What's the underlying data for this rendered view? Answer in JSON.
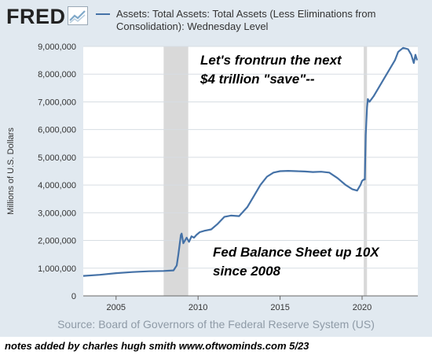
{
  "brand": {
    "name": "FRED",
    "logo_icon": "fred-chart-icon"
  },
  "legend": {
    "label": "Assets: Total Assets: Total Assets (Less Eliminations from Consolidation): Wednesday Level",
    "color": "#4572a7"
  },
  "source": "Source: Board of Governors of the Federal Reserve System (US)",
  "footnote": "notes added by charles hugh smith  www.oftwominds.com  5/23",
  "annotations": {
    "top_line1": "Let's frontrun the next",
    "top_line2": "$4 trillion \"save\"--",
    "mid_line1": "Fed Balance Sheet up 10X",
    "mid_line2": "since 2008"
  },
  "chart_data": {
    "type": "line",
    "title": "",
    "ylabel": "Millions of U.S. Dollars",
    "xlabel": "",
    "xlim": [
      2003.0,
      2023.4
    ],
    "ylim": [
      0,
      9000000
    ],
    "xticks": [
      2005,
      2010,
      2015,
      2020
    ],
    "yticks": [
      0,
      1000000,
      2000000,
      3000000,
      4000000,
      5000000,
      6000000,
      7000000,
      8000000,
      9000000
    ],
    "ytick_labels": [
      "0",
      "1,000,000",
      "2,000,000",
      "3,000,000",
      "4,000,000",
      "5,000,000",
      "6,000,000",
      "7,000,000",
      "8,000,000",
      "9,000,000"
    ],
    "grid": true,
    "recessions": [
      [
        2007.9,
        2009.4
      ],
      [
        2020.1,
        2020.3
      ]
    ],
    "line_color": "#4572a7",
    "recession_color": "#d9d9d9",
    "series": [
      {
        "x": [
          2003.0,
          2004.0,
          2005.0,
          2006.0,
          2007.0,
          2007.9,
          2008.5,
          2008.7,
          2008.8,
          2008.95,
          2009.0,
          2009.1,
          2009.2,
          2009.3,
          2009.45,
          2009.6,
          2009.75,
          2009.9,
          2010.1,
          2010.4,
          2010.8,
          2011.2,
          2011.6,
          2012.0,
          2012.5,
          2013.0,
          2013.4,
          2013.8,
          2014.2,
          2014.6,
          2015.0,
          2015.5,
          2016.0,
          2016.5,
          2017.0,
          2017.5,
          2018.0,
          2018.5,
          2019.0,
          2019.4,
          2019.7,
          2019.9,
          2020.0,
          2020.1,
          2020.17,
          2020.22,
          2020.3,
          2020.35,
          2020.45,
          2020.7,
          2021.0,
          2021.3,
          2021.7,
          2022.0,
          2022.2,
          2022.5,
          2022.8,
          2023.0,
          2023.15,
          2023.25,
          2023.35
        ],
        "y": [
          720000,
          760000,
          820000,
          860000,
          890000,
          900000,
          920000,
          1100000,
          1500000,
          2200000,
          2250000,
          1900000,
          2000000,
          2100000,
          1950000,
          2150000,
          2100000,
          2200000,
          2300000,
          2350000,
          2400000,
          2600000,
          2850000,
          2900000,
          2880000,
          3200000,
          3600000,
          4000000,
          4300000,
          4450000,
          4500000,
          4510000,
          4500000,
          4490000,
          4470000,
          4480000,
          4450000,
          4250000,
          4000000,
          3850000,
          3800000,
          4000000,
          4150000,
          4200000,
          4200000,
          5800000,
          6800000,
          7100000,
          7000000,
          7200000,
          7500000,
          7800000,
          8200000,
          8500000,
          8800000,
          8950000,
          8900000,
          8700000,
          8400000,
          8700000,
          8500000
        ]
      }
    ]
  }
}
